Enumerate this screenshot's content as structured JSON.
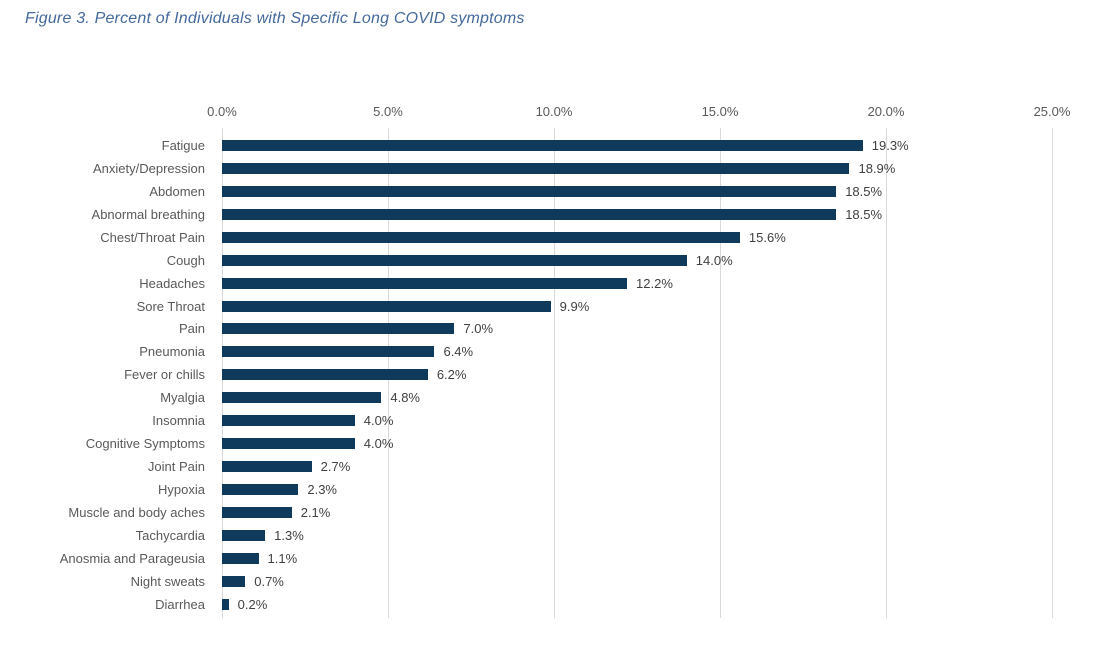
{
  "title": "Figure 3. Percent of Individuals with Specific Long COVID symptoms",
  "colors": {
    "bar": "#0F3A5C",
    "title_text": "#44699B",
    "gridline": "#D9D9D9",
    "axis_text": "#595959",
    "category_text": "#595959",
    "value_text": "#404040",
    "background": "#FFFFFF"
  },
  "chart_data": {
    "type": "bar",
    "orientation": "horizontal",
    "title": "Figure 3. Percent of Individuals with Specific Long COVID symptoms",
    "xlabel": "",
    "ylabel": "",
    "xlim": [
      0,
      25
    ],
    "xticks": [
      {
        "value": 0,
        "label": "0.0%"
      },
      {
        "value": 5,
        "label": "5.0%"
      },
      {
        "value": 10,
        "label": "10.0%"
      },
      {
        "value": 15,
        "label": "15.0%"
      },
      {
        "value": 20,
        "label": "20.0%"
      },
      {
        "value": 25,
        "label": "25.0%"
      }
    ],
    "grid": true,
    "axis_position": "top",
    "legend": false,
    "categories": [
      "Fatigue",
      "Anxiety/Depression",
      "Abdomen",
      "Abnormal breathing",
      "Chest/Throat Pain",
      "Cough",
      "Headaches",
      "Sore Throat",
      "Pain",
      "Pneumonia",
      "Fever or chills",
      "Myalgia",
      "Insomnia",
      "Cognitive Symptoms",
      "Joint Pain",
      "Hypoxia",
      "Muscle and body aches",
      "Tachycardia",
      "Anosmia and Parageusia",
      "Night sweats",
      "Diarrhea"
    ],
    "values": [
      19.3,
      18.9,
      18.5,
      18.5,
      15.6,
      14.0,
      12.2,
      9.9,
      7.0,
      6.4,
      6.2,
      4.8,
      4.0,
      4.0,
      2.7,
      2.3,
      2.1,
      1.3,
      1.1,
      0.7,
      0.2
    ],
    "value_labels": [
      "19.3%",
      "18.9%",
      "18.5%",
      "18.5%",
      "15.6%",
      "14.0%",
      "12.2%",
      "9.9%",
      "7.0%",
      "6.4%",
      "6.2%",
      "4.8%",
      "4.0%",
      "4.0%",
      "2.7%",
      "2.3%",
      "2.1%",
      "1.3%",
      "1.1%",
      "0.7%",
      "0.2%"
    ]
  }
}
